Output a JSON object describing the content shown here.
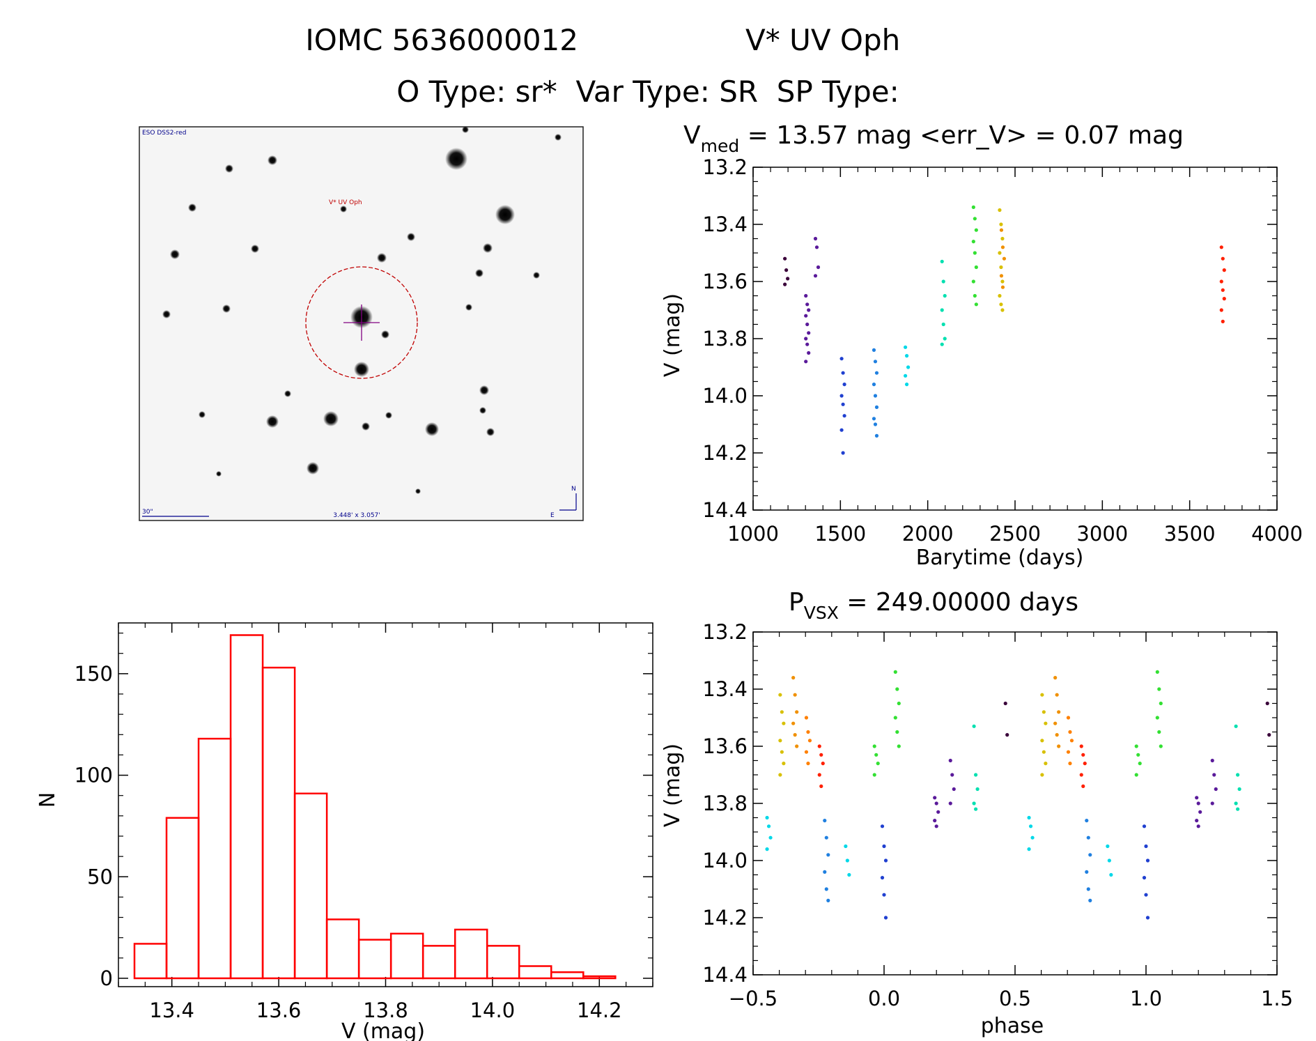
{
  "header": {
    "line1_id": "IOMC 5636000012",
    "line1_name": "V* UV Oph",
    "line2": "O Type: sr*  Var Type: SR  SP Type:"
  },
  "finder_image": {
    "survey_label": "ESO DSS2-red",
    "target_label": "V* UV Oph",
    "scale_label": "30\"",
    "size_label": "3.448' x 3.057'",
    "north_label": "N",
    "east_label": "E",
    "colors": {
      "label": "#00008b",
      "target": "#c00000",
      "cross": "#800080"
    }
  },
  "chart_data": [
    {
      "id": "light_curve",
      "type": "scatter",
      "title_main": "V",
      "title_sub": "med",
      "title_rest": " = 13.57 mag <err_V> = 0.07 mag",
      "xlabel": "Barytime (days)",
      "ylabel": "V (mag)",
      "xlim": [
        1000,
        4000
      ],
      "ylim": [
        14.4,
        13.2
      ],
      "xticks": [
        1000,
        1500,
        2000,
        2500,
        3000,
        3500,
        4000
      ],
      "yticks": [
        13.2,
        13.4,
        13.6,
        13.8,
        14.0,
        14.2,
        14.4
      ],
      "ytick_labels": [
        "13.2",
        "13.4",
        "13.6",
        "13.8",
        "14.0",
        "14.2",
        "14.4"
      ],
      "groups": [
        {
          "t": 1190,
          "v": [
            13.52,
            13.56,
            13.59,
            13.61
          ],
          "color": "#3a003a"
        },
        {
          "t": 1310,
          "v": [
            13.65,
            13.68,
            13.7,
            13.72,
            13.75,
            13.78,
            13.8,
            13.82,
            13.85,
            13.88
          ],
          "color": "#5a1a9a"
        },
        {
          "t": 1365,
          "v": [
            13.45,
            13.48,
            13.55,
            13.58
          ],
          "color": "#5a1a9a"
        },
        {
          "t": 1515,
          "v": [
            13.87,
            13.92,
            13.96,
            14.0,
            14.03,
            14.07,
            14.12,
            14.2
          ],
          "color": "#2040d0"
        },
        {
          "t": 1700,
          "v": [
            13.84,
            13.88,
            13.92,
            13.96,
            14.0,
            14.04,
            14.08,
            14.1,
            14.14
          ],
          "color": "#2080e0"
        },
        {
          "t": 1880,
          "v": [
            13.83,
            13.86,
            13.9,
            13.93,
            13.96
          ],
          "color": "#00d8e8"
        },
        {
          "t": 2090,
          "v": [
            13.53,
            13.6,
            13.65,
            13.7,
            13.75,
            13.8,
            13.82
          ],
          "color": "#00e0b0"
        },
        {
          "t": 2270,
          "v": [
            13.34,
            13.38,
            13.42,
            13.46,
            13.5,
            13.55,
            13.6,
            13.65,
            13.68
          ],
          "color": "#33e033"
        },
        {
          "t": 2420,
          "v": [
            13.35,
            13.4,
            13.45,
            13.5,
            13.55,
            13.6,
            13.65,
            13.68,
            13.7
          ],
          "color": "#d8c000"
        },
        {
          "t": 2430,
          "v": [
            13.42,
            13.48,
            13.52,
            13.58,
            13.62
          ],
          "color": "#f09000"
        },
        {
          "t": 3690,
          "v": [
            13.48,
            13.52,
            13.56,
            13.6,
            13.63,
            13.66,
            13.7,
            13.74
          ],
          "color": "#ff2000"
        }
      ]
    },
    {
      "id": "histogram",
      "type": "bar",
      "xlabel": "V (mag)",
      "ylabel": "N",
      "xlim": [
        13.3,
        14.3
      ],
      "ylim": [
        0,
        175
      ],
      "xticks": [
        13.4,
        13.6,
        13.8,
        14.0,
        14.2
      ],
      "xtick_labels": [
        "13.4",
        "13.6",
        "13.8",
        "14.0",
        "14.2"
      ],
      "yticks": [
        0,
        50,
        100,
        150
      ],
      "bin_edges": [
        13.33,
        13.39,
        13.45,
        13.51,
        13.57,
        13.63,
        13.69,
        13.75,
        13.81,
        13.87,
        13.93,
        13.99,
        14.05,
        14.11,
        14.17,
        14.23
      ],
      "counts": [
        17,
        79,
        118,
        169,
        153,
        91,
        29,
        19,
        22,
        16,
        24,
        16,
        6,
        3,
        1
      ],
      "bar_color": "#ff0000"
    },
    {
      "id": "phased_curve",
      "type": "scatter",
      "title_main": "P",
      "title_sub": "VSX",
      "title_rest": " = 249.00000 days",
      "xlabel": "phase",
      "ylabel": "V (mag)",
      "xlim": [
        -0.5,
        1.5
      ],
      "ylim": [
        14.4,
        13.2
      ],
      "xticks": [
        -0.5,
        0.0,
        0.5,
        1.0,
        1.5
      ],
      "xtick_labels": [
        "−0.5",
        "0.0",
        "0.5",
        "1.0",
        "1.5"
      ],
      "yticks": [
        13.2,
        13.4,
        13.6,
        13.8,
        14.0,
        14.2,
        14.4
      ],
      "ytick_labels": [
        "13.2",
        "13.4",
        "13.6",
        "13.8",
        "14.0",
        "14.2",
        "14.4"
      ],
      "groups": [
        {
          "p": -0.44,
          "v": [
            13.85,
            13.88,
            13.92,
            13.96
          ],
          "color": "#00d8e8"
        },
        {
          "p": -0.39,
          "v": [
            13.42,
            13.48,
            13.52,
            13.58,
            13.62,
            13.66,
            13.7
          ],
          "color": "#d8c000"
        },
        {
          "p": -0.34,
          "v": [
            13.36,
            13.42,
            13.48,
            13.52,
            13.56,
            13.6
          ],
          "color": "#f09000"
        },
        {
          "p": -0.29,
          "v": [
            13.5,
            13.55,
            13.58,
            13.62,
            13.66
          ],
          "color": "#ff8000"
        },
        {
          "p": -0.24,
          "v": [
            13.6,
            13.63,
            13.66,
            13.7,
            13.74
          ],
          "color": "#ff2000"
        },
        {
          "p": -0.22,
          "v": [
            13.86,
            13.92,
            13.98,
            14.04,
            14.1,
            14.14
          ],
          "color": "#2080e0"
        },
        {
          "p": -0.14,
          "v": [
            13.95,
            14.0,
            14.05
          ],
          "color": "#00d8e8"
        },
        {
          "p": -0.03,
          "v": [
            13.6,
            13.63,
            13.66,
            13.7
          ],
          "color": "#33e033"
        },
        {
          "p": 0.0,
          "v": [
            13.88,
            13.95,
            14.0,
            14.06,
            14.12,
            14.2
          ],
          "color": "#2040d0"
        },
        {
          "p": 0.05,
          "v": [
            13.34,
            13.4,
            13.45,
            13.5,
            13.55,
            13.6
          ],
          "color": "#33e033"
        },
        {
          "p": 0.2,
          "v": [
            13.78,
            13.8,
            13.83,
            13.86,
            13.88
          ],
          "color": "#5a1a9a"
        },
        {
          "p": 0.26,
          "v": [
            13.65,
            13.7,
            13.75,
            13.8
          ],
          "color": "#5a1a9a"
        },
        {
          "p": 0.35,
          "v": [
            13.53,
            13.7,
            13.75,
            13.8,
            13.82
          ],
          "color": "#00e0b0"
        },
        {
          "p": 0.47,
          "v": [
            13.45,
            13.56
          ],
          "color": "#3a003a"
        },
        {
          "p": 0.56,
          "v": [
            13.85,
            13.88,
            13.92,
            13.96
          ],
          "color": "#00d8e8"
        },
        {
          "p": 0.61,
          "v": [
            13.42,
            13.48,
            13.52,
            13.58,
            13.62,
            13.66,
            13.7
          ],
          "color": "#d8c000"
        },
        {
          "p": 0.66,
          "v": [
            13.36,
            13.42,
            13.48,
            13.52,
            13.56,
            13.6
          ],
          "color": "#f09000"
        },
        {
          "p": 0.71,
          "v": [
            13.5,
            13.55,
            13.58,
            13.62,
            13.66
          ],
          "color": "#ff8000"
        },
        {
          "p": 0.76,
          "v": [
            13.6,
            13.63,
            13.66,
            13.7,
            13.74
          ],
          "color": "#ff2000"
        },
        {
          "p": 0.78,
          "v": [
            13.86,
            13.92,
            13.98,
            14.04,
            14.1,
            14.14
          ],
          "color": "#2080e0"
        },
        {
          "p": 0.86,
          "v": [
            13.95,
            14.0,
            14.05
          ],
          "color": "#00d8e8"
        },
        {
          "p": 0.97,
          "v": [
            13.6,
            13.63,
            13.66,
            13.7
          ],
          "color": "#33e033"
        },
        {
          "p": 1.0,
          "v": [
            13.88,
            13.95,
            14.0,
            14.06,
            14.12,
            14.2
          ],
          "color": "#2040d0"
        },
        {
          "p": 1.05,
          "v": [
            13.34,
            13.4,
            13.45,
            13.5,
            13.55,
            13.6
          ],
          "color": "#33e033"
        },
        {
          "p": 1.2,
          "v": [
            13.78,
            13.8,
            13.83,
            13.86,
            13.88
          ],
          "color": "#5a1a9a"
        },
        {
          "p": 1.26,
          "v": [
            13.65,
            13.7,
            13.75,
            13.8
          ],
          "color": "#5a1a9a"
        },
        {
          "p": 1.35,
          "v": [
            13.53,
            13.7,
            13.75,
            13.8,
            13.82
          ],
          "color": "#00e0b0"
        },
        {
          "p": 1.47,
          "v": [
            13.45,
            13.56
          ],
          "color": "#3a003a"
        }
      ]
    }
  ]
}
